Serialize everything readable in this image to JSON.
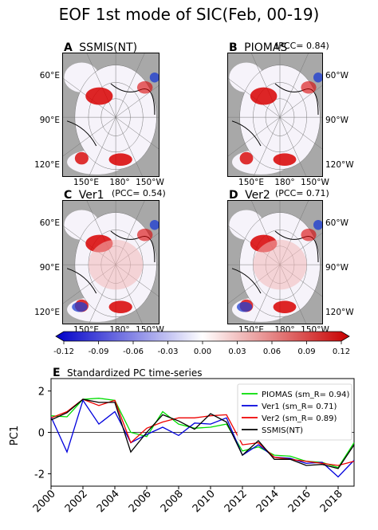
{
  "title": "EOF 1st mode of SIC(Feb, 00-19)",
  "panels": [
    {
      "letter": "A",
      "name": "SSMIS(NT)",
      "pcc": "",
      "lat_side": "left",
      "lat_labels": [
        "60°E",
        "90°E",
        "120°E"
      ],
      "lon_labels": [
        "150°E",
        "180°",
        "150°W"
      ]
    },
    {
      "letter": "B",
      "name": "PIOMAS",
      "pcc": "(PCC= 0.84)",
      "lat_side": "right",
      "lat_labels": [
        "60°W",
        "90°W",
        "120°W"
      ],
      "lon_labels": [
        "150°E",
        "180°",
        "150°W"
      ]
    },
    {
      "letter": "C",
      "name": "Ver1",
      "pcc": "(PCC= 0.54)",
      "lat_side": "left",
      "lat_labels": [
        "60°E",
        "90°E",
        "120°E"
      ],
      "lon_labels": [
        "150°E",
        "180°",
        "150°W"
      ]
    },
    {
      "letter": "D",
      "name": "Ver2",
      "pcc": "(PCC= 0.71)",
      "lat_side": "right",
      "lat_labels": [
        "60°W",
        "90°W",
        "120°W"
      ],
      "lon_labels": [
        "150°E",
        "180°",
        "150°W"
      ]
    }
  ],
  "colorbar": {
    "ticks": [
      "-0.12",
      "-0.09",
      "-0.06",
      "-0.03",
      "0.00",
      "0.03",
      "0.06",
      "0.09",
      "0.12"
    ],
    "min": -0.12,
    "max": 0.12,
    "colors": {
      "neg": "#0000c8",
      "mid": "#ffffff",
      "pos": "#c80000"
    }
  },
  "chart_data": {
    "type": "line",
    "panel_letter": "E",
    "title": "Standardized PC time-series",
    "xlabel": "",
    "ylabel": "PC1",
    "xlim": [
      2000,
      2019
    ],
    "ylim": [
      -2.6,
      2.6
    ],
    "xticks": [
      2000,
      2002,
      2004,
      2006,
      2008,
      2010,
      2012,
      2014,
      2016,
      2018
    ],
    "yticks": [
      -2,
      0,
      2
    ],
    "x": [
      2000,
      2001,
      2002,
      2003,
      2004,
      2005,
      2006,
      2007,
      2008,
      2009,
      2010,
      2011,
      2012,
      2013,
      2014,
      2015,
      2016,
      2017,
      2018,
      2019
    ],
    "series": [
      {
        "name": "PIOMAS (sm_R= 0.94)",
        "color": "#00dd00",
        "values": [
          0.8,
          0.75,
          1.6,
          1.65,
          1.55,
          0.0,
          -0.2,
          1.0,
          0.4,
          0.2,
          0.25,
          0.4,
          -0.9,
          -0.7,
          -1.1,
          -1.15,
          -1.4,
          -1.45,
          -1.7,
          -0.5
        ]
      },
      {
        "name": "Ver1 (sm_R= 0.71)",
        "color": "#0000dd",
        "values": [
          0.75,
          -0.95,
          1.55,
          0.4,
          1.0,
          -0.5,
          -0.1,
          0.25,
          -0.15,
          0.45,
          0.4,
          0.7,
          -1.1,
          -0.6,
          -1.2,
          -1.25,
          -1.5,
          -1.45,
          -2.15,
          -1.35
        ]
      },
      {
        "name": "Ver2 (sm_R= 0.89)",
        "color": "#ee0000",
        "values": [
          0.7,
          1.0,
          1.6,
          1.3,
          1.55,
          -0.5,
          0.2,
          0.5,
          0.7,
          0.7,
          0.8,
          0.85,
          -0.6,
          -0.5,
          -1.2,
          -1.3,
          -1.4,
          -1.5,
          -1.6,
          -1.4
        ]
      },
      {
        "name": "SSMIS(NT)",
        "color": "#000000",
        "values": [
          0.6,
          0.95,
          1.6,
          1.45,
          1.45,
          -0.95,
          0.0,
          0.85,
          0.55,
          0.15,
          0.9,
          0.5,
          -1.1,
          -0.4,
          -1.3,
          -1.3,
          -1.6,
          -1.55,
          -1.75,
          -0.6
        ]
      }
    ],
    "legend_position": "top-right",
    "zero_line": true
  }
}
